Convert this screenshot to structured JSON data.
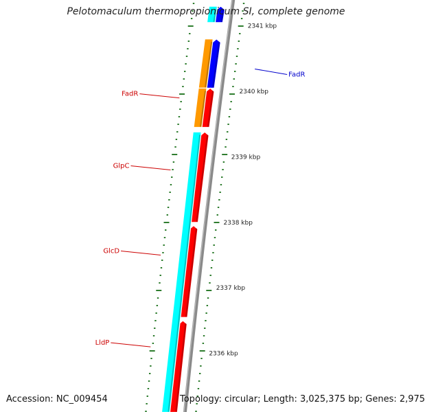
{
  "title": "Pelotomaculum thermopropionicum SI, complete genome",
  "footer": {
    "accession": "Accession: NC_009454",
    "summary": "Topology: circular; Length: 3,025,375 bp; Genes: 2,975"
  },
  "colors": {
    "backbone": "#8a8a8a",
    "forward_gene": "#ff0000",
    "reverse_gene": "#00ffff",
    "regulator_gene": "#ff9900",
    "other_gene": "#0000ff",
    "tick": "#2e7d2e",
    "label_red": "#cc0000",
    "label_blue": "#0000cc",
    "ruler_text": "#222222"
  },
  "ruler": [
    {
      "label": "2341 kbp",
      "kb": 2341.0
    },
    {
      "label": "2340 kbp",
      "kb": 2340.0
    },
    {
      "label": "2339 kbp",
      "kb": 2339.0
    },
    {
      "label": "2338 kbp",
      "kb": 2338.0
    },
    {
      "label": "2337 kbp",
      "kb": 2337.0
    },
    {
      "label": "2336 kbp",
      "kb": 2336.0
    }
  ],
  "genes": [
    {
      "strand": "forward",
      "color_key": "other_gene",
      "start_kb": 2341.3,
      "end_kb": 2341.05
    },
    {
      "strand": "reverse",
      "color_key": "reverse_gene",
      "start_kb": 2341.3,
      "end_kb": 2341.05
    },
    {
      "strand": "forward",
      "color_key": "other_gene",
      "start_kb": 2340.8,
      "end_kb": 2340.05
    },
    {
      "strand": "reverse",
      "color_key": "regulator_gene",
      "start_kb": 2340.8,
      "end_kb": 2340.05
    },
    {
      "strand": "forward",
      "color_key": "forward_gene",
      "start_kb": 2340.05,
      "end_kb": 2339.45
    },
    {
      "strand": "reverse",
      "color_key": "regulator_gene",
      "start_kb": 2340.05,
      "end_kb": 2339.45
    },
    {
      "strand": "forward",
      "color_key": "forward_gene",
      "start_kb": 2339.38,
      "end_kb": 2338.0
    },
    {
      "strand": "forward",
      "color_key": "forward_gene",
      "start_kb": 2337.95,
      "end_kb": 2336.55
    },
    {
      "strand": "forward",
      "color_key": "forward_gene",
      "start_kb": 2336.5,
      "end_kb": 2335.1
    },
    {
      "strand": "reverse",
      "color_key": "reverse_gene",
      "start_kb": 2339.38,
      "end_kb": 2335.1
    }
  ],
  "gene_labels": [
    {
      "text": "FadR",
      "side": "right",
      "color_key": "label_blue",
      "kb": 2340.3
    },
    {
      "text": "FadR",
      "side": "left",
      "color_key": "label_red",
      "kb": 2339.9
    },
    {
      "text": "GlpC",
      "side": "left",
      "color_key": "label_red",
      "kb": 2338.8
    },
    {
      "text": "GlcD",
      "side": "left",
      "color_key": "label_red",
      "kb": 2337.5
    },
    {
      "text": "LldP",
      "side": "left",
      "color_key": "label_red",
      "kb": 2336.1
    }
  ]
}
